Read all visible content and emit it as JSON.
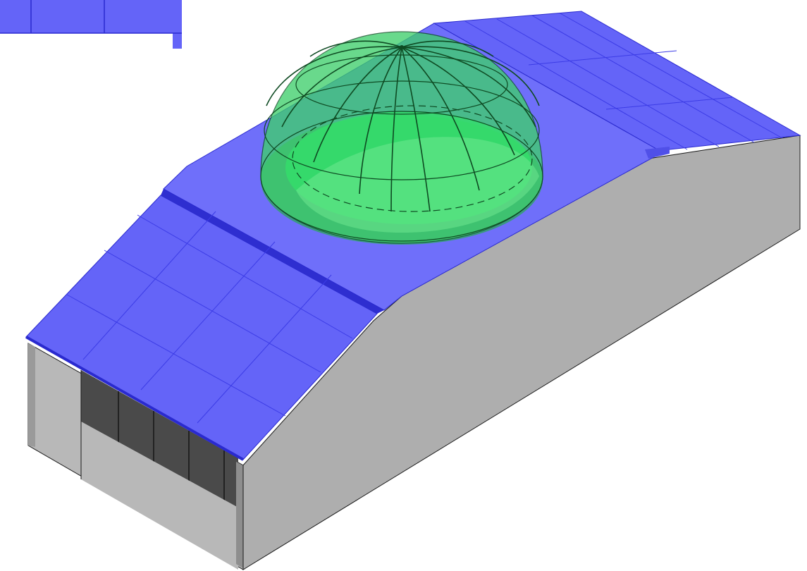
{
  "colors": {
    "background": "#ffffff",
    "roof": "#6464f8",
    "roof_light": "#7575fa",
    "roof_edge": "#2a2acf",
    "roof_line": "#3c3ce6",
    "wall": "#aeaeae",
    "wall_dark": "#8e8e8e",
    "door": "#4a4a4a",
    "door_dark": "#2e2e2e",
    "outline": "#1a1a1a",
    "dome_glass": "#33cc66",
    "dome_inner": "#2fe06a",
    "dome_line": "#0e4a22"
  },
  "icons": {
    "dome": "transparent-dome",
    "building": "gabled-hangar",
    "inset": "roof-fragment"
  }
}
